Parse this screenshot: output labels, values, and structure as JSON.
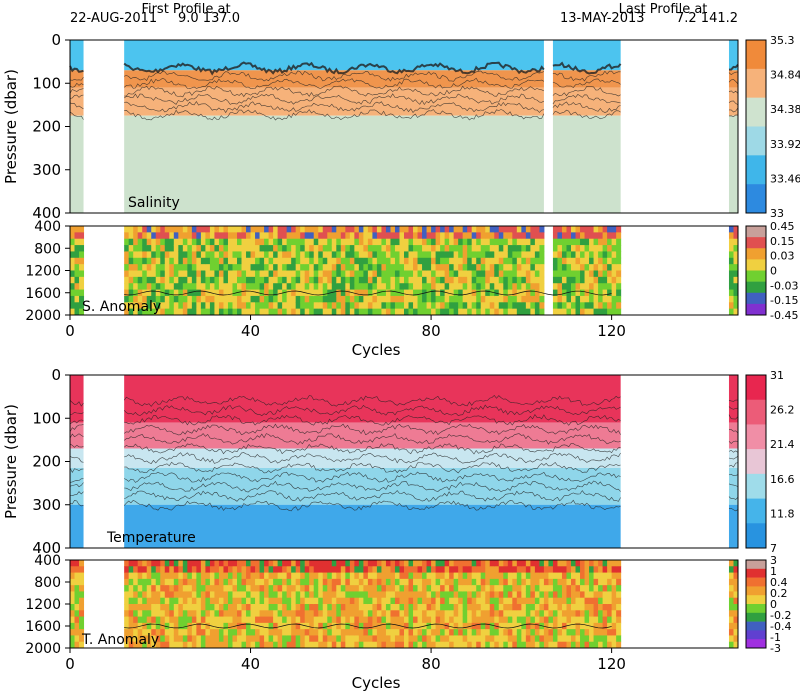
{
  "header": {
    "first_label": "First Profile at",
    "first_date": "22-AUG-2011",
    "first_pos": "9.0 137.0",
    "last_label": "Last Profile at",
    "last_date": "13-MAY-2013",
    "last_pos": "7.2 141.2"
  },
  "chart_data": [
    {
      "type": "heatmap",
      "panel": "salinity",
      "title": "",
      "annotation": "Salinity",
      "ylabel": "Pressure (dbar)",
      "xlabel": "",
      "ylim": [
        400,
        0
      ],
      "xlim": [
        0,
        148
      ],
      "y_ticks": [
        "0",
        "100",
        "200",
        "300",
        "400"
      ],
      "x_ticks": [],
      "colorbar": {
        "labels": [
          "35.3",
          "34.84",
          "34.38",
          "33.92",
          "33.46",
          "33"
        ],
        "colors": [
          "#f08a3a",
          "#f6b27a",
          "#cfe3cf",
          "#9ed9e6",
          "#3fb6ea",
          "#2d8ae0"
        ]
      },
      "layers": [
        {
          "pressure_top": 0,
          "pressure_bottom": 70,
          "value": 33.9,
          "color": "#4cc4ef"
        },
        {
          "pressure_top": 70,
          "pressure_bottom": 110,
          "value": 35.3,
          "color": "#f0954d"
        },
        {
          "pressure_top": 110,
          "pressure_bottom": 175,
          "value": 34.9,
          "color": "#f6b27a"
        },
        {
          "pressure_top": 175,
          "pressure_bottom": 400,
          "value": 34.5,
          "color": "#cde2cd"
        }
      ],
      "data_cycles": [
        [
          0,
          3
        ],
        [
          12,
          105
        ],
        [
          107,
          122
        ],
        [
          146,
          148
        ]
      ]
    },
    {
      "type": "heatmap",
      "panel": "salinity-anomaly",
      "title": "",
      "annotation": "S. Anomaly",
      "ylabel": "",
      "xlabel": "Cycles",
      "ylim": [
        2000,
        400
      ],
      "xlim": [
        0,
        148
      ],
      "y_ticks": [
        "400",
        "800",
        "1200",
        "1600",
        "2000"
      ],
      "x_ticks": [
        "0",
        "40",
        "80",
        "120"
      ],
      "colorbar": {
        "labels": [
          "0.45",
          "0.15",
          "0.03",
          "0",
          "-0.03",
          "-0.15",
          "-0.45"
        ],
        "colors": [
          "#c8a09a",
          "#e05050",
          "#f0a030",
          "#f0d040",
          "#70d030",
          "#30a040",
          "#4060c0",
          "#8030d0"
        ]
      }
    },
    {
      "type": "heatmap",
      "panel": "temperature",
      "title": "",
      "annotation": "Temperature",
      "ylabel": "Pressure (dbar)",
      "xlabel": "",
      "ylim": [
        400,
        0
      ],
      "xlim": [
        0,
        148
      ],
      "y_ticks": [
        "0",
        "100",
        "200",
        "300",
        "400"
      ],
      "x_ticks": [],
      "colorbar": {
        "labels": [
          "31",
          "26.2",
          "21.4",
          "16.6",
          "11.8",
          "7"
        ],
        "colors": [
          "#e8264f",
          "#ec5c78",
          "#f08ea6",
          "#e8c6d6",
          "#9fdcea",
          "#45b4ea",
          "#2893e0"
        ]
      },
      "layers": [
        {
          "pressure_top": 0,
          "pressure_bottom": 110,
          "value": 29,
          "color": "#e8345a"
        },
        {
          "pressure_top": 110,
          "pressure_bottom": 170,
          "value": 24,
          "color": "#ee7b94"
        },
        {
          "pressure_top": 170,
          "pressure_bottom": 215,
          "value": 18,
          "color": "#c8e6f0"
        },
        {
          "pressure_top": 215,
          "pressure_bottom": 300,
          "value": 14,
          "color": "#8fd6ea"
        },
        {
          "pressure_top": 300,
          "pressure_bottom": 400,
          "value": 11,
          "color": "#3fa8ea"
        }
      ],
      "data_cycles": [
        [
          0,
          3
        ],
        [
          12,
          122
        ],
        [
          146,
          148
        ]
      ]
    },
    {
      "type": "heatmap",
      "panel": "temperature-anomaly",
      "title": "",
      "annotation": "T. Anomaly",
      "ylabel": "",
      "xlabel": "Cycles",
      "ylim": [
        2000,
        400
      ],
      "xlim": [
        0,
        148
      ],
      "y_ticks": [
        "400",
        "800",
        "1200",
        "1600",
        "2000"
      ],
      "x_ticks": [
        "0",
        "40",
        "80",
        "120"
      ],
      "colorbar": {
        "labels": [
          "3",
          "1",
          "0.4",
          "0.2",
          "0",
          "-0.2",
          "-0.4",
          "-1",
          "-3"
        ],
        "colors": [
          "#c8a09a",
          "#e03030",
          "#f07030",
          "#f0a030",
          "#f0d040",
          "#70d030",
          "#30a040",
          "#4060c0",
          "#6040d0",
          "#a030e0"
        ]
      }
    }
  ]
}
